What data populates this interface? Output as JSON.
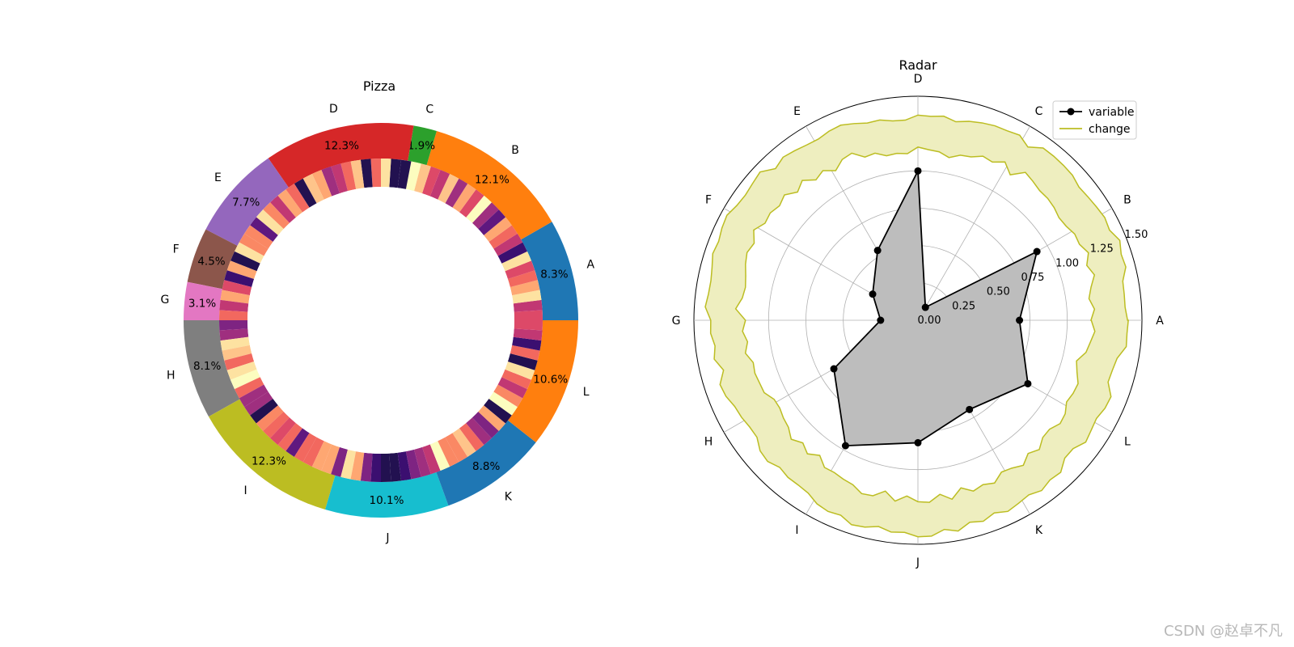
{
  "chart_data": [
    {
      "type": "pie",
      "title": "Pizza",
      "categories": [
        "A",
        "B",
        "C",
        "D",
        "E",
        "F",
        "G",
        "H",
        "I",
        "J",
        "K",
        "L"
      ],
      "values": [
        8.3,
        12.1,
        1.9,
        12.3,
        7.7,
        4.5,
        3.1,
        8.1,
        12.3,
        10.1,
        8.8,
        10.6
      ],
      "labels": [
        "8.3%",
        "12.1%",
        "1.9%",
        "12.3%",
        "7.7%",
        "4.5%",
        "3.1%",
        "8.1%",
        "12.3%",
        "10.1%",
        "8.8%",
        "10.6%"
      ],
      "colors": [
        "#1f77b4",
        "#ff7f0e",
        "#2ca02c",
        "#d62728",
        "#9467bd",
        "#8c564b",
        "#e377c2",
        "#7f7f7f",
        "#bcbd22",
        "#17becf",
        "#1f77b4",
        "#ff7f0e"
      ],
      "inner_ring": {
        "segments": 100,
        "palette": [
          "#fcfdbf",
          "#fde2a1",
          "#fec48a",
          "#fea772",
          "#fa8864",
          "#f2685f",
          "#dd4968",
          "#c13873",
          "#9f2f7f",
          "#7e2482",
          "#5f187f",
          "#3b0f70",
          "#221150"
        ]
      }
    },
    {
      "type": "radar",
      "title": "Radar",
      "categories": [
        "A",
        "B",
        "C",
        "D",
        "E",
        "F",
        "G",
        "H",
        "I",
        "J",
        "K",
        "L"
      ],
      "rlim": [
        0,
        1.5
      ],
      "rticks": [
        "0.00",
        "0.25",
        "0.50",
        "0.75",
        "1.00",
        "1.25",
        "1.50"
      ],
      "grid": true,
      "legend_position": "top-right",
      "series": [
        {
          "name": "variable",
          "color": "#000000",
          "fill": "#bdbdbd",
          "values": [
            0.68,
            0.92,
            0.1,
            1.0,
            0.54,
            0.35,
            0.25,
            0.65,
            0.97,
            0.82,
            0.69,
            0.85
          ]
        },
        {
          "name": "change",
          "color": "#bcbd22",
          "fill": "#eeeebf",
          "band": [
            1.28,
            1.41
          ]
        }
      ]
    }
  ],
  "watermark": "CSDN @赵卓不凡"
}
